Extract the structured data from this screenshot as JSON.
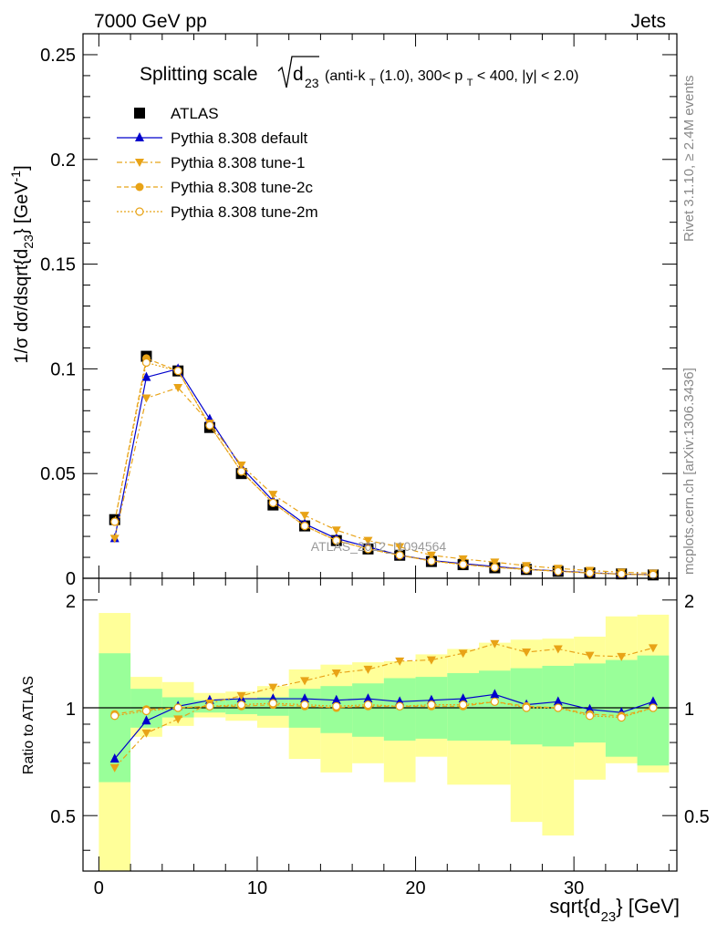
{
  "header": {
    "left": "7000 GeV pp",
    "right": "Jets"
  },
  "side_labels": {
    "rivet": "Rivet 3.1.10, ≥ 2.4M events",
    "mcplots": "mcplots.cern.ch [arXiv:1306.3436]"
  },
  "watermark": "ATLAS_2012_I1094564",
  "chart_data": [
    {
      "type": "line",
      "panel": "main",
      "title_parts": {
        "prefix": "Splitting scale",
        "sqrt_arg": "d",
        "sqrt_sub": "23",
        "cut_text": "(anti-k",
        "cut_sub1": "T",
        "cut_text2": "(1.0), 300< p",
        "cut_sub2": "T",
        "cut_text3": " < 400, |y| < 2.0)"
      },
      "ylabel_parts": {
        "a": "1/σ dσ/dsqrt{d",
        "sub": "23",
        "b": "} [GeV",
        "sup": "-1",
        "c": "]"
      },
      "xlim": [
        -1,
        36.5
      ],
      "ylim": [
        0,
        0.26
      ],
      "yticks": [
        "0",
        "0.05",
        "0.1",
        "0.15",
        "0.2",
        "0.25"
      ],
      "ytick_values": [
        0,
        0.05,
        0.1,
        0.15,
        0.2,
        0.25
      ],
      "x": [
        1,
        3,
        5,
        7,
        9,
        11,
        13,
        15,
        17,
        19,
        21,
        23,
        25,
        27,
        29,
        31,
        33,
        35
      ],
      "series": [
        {
          "name": "ATLAS",
          "marker": "square",
          "color": "#000000",
          "values": [
            0.028,
            0.106,
            0.099,
            0.072,
            0.05,
            0.035,
            0.025,
            0.018,
            0.014,
            0.011,
            0.008,
            0.0065,
            0.005,
            0.0042,
            0.0033,
            0.0026,
            0.0021,
            0.0016
          ]
        },
        {
          "name": "Pythia 8.308 default",
          "marker": "triangle-up",
          "color": "#0000cc",
          "values": [
            0.019,
            0.096,
            0.1,
            0.076,
            0.053,
            0.037,
            0.026,
            0.019,
            0.015,
            0.011,
            0.0085,
            0.007,
            0.0056,
            0.0043,
            0.0035,
            0.0026,
            0.002,
            0.0017
          ]
        },
        {
          "name": "Pythia 8.308 tune-1",
          "marker": "triangle-down",
          "color": "#e8a317",
          "values": [
            0.019,
            0.086,
            0.091,
            0.074,
            0.054,
            0.04,
            0.03,
            0.023,
            0.018,
            0.015,
            0.011,
            0.0092,
            0.0077,
            0.006,
            0.0047,
            0.0037,
            0.0029,
            0.0024
          ]
        },
        {
          "name": "Pythia 8.308 tune-2c",
          "marker": "circle",
          "color": "#e8a317",
          "values": [
            0.027,
            0.105,
            0.099,
            0.073,
            0.051,
            0.036,
            0.025,
            0.018,
            0.014,
            0.011,
            0.0083,
            0.0066,
            0.0052,
            0.0043,
            0.0034,
            0.0025,
            0.002,
            0.0016
          ]
        },
        {
          "name": "Pythia 8.308 tune-2m",
          "marker": "open-circle",
          "color": "#e8a317",
          "values": [
            0.027,
            0.103,
            0.099,
            0.073,
            0.051,
            0.036,
            0.025,
            0.018,
            0.014,
            0.011,
            0.0082,
            0.0066,
            0.0052,
            0.0042,
            0.0033,
            0.0025,
            0.002,
            0.0016
          ]
        }
      ]
    },
    {
      "type": "line",
      "panel": "ratio",
      "ylabel": "Ratio to ATLAS",
      "xlabel_parts": {
        "a": "sqrt{d",
        "sub": "23",
        "b": "} [GeV]"
      },
      "xlim": [
        -1,
        36.5
      ],
      "ylim": [
        0.35,
        2.3
      ],
      "xticks": [
        "0",
        "10",
        "20",
        "30"
      ],
      "xtick_values": [
        0,
        10,
        20,
        30
      ],
      "yticks": [
        "0.5",
        "1",
        "2"
      ],
      "ytick_values": [
        0.5,
        1,
        2
      ],
      "reference_line": 1,
      "bin_edges": [
        0,
        2,
        4,
        6,
        8,
        10,
        12,
        14,
        16,
        18,
        20,
        22,
        24,
        26,
        28,
        30,
        32,
        34,
        36
      ],
      "uncertainty_bands": {
        "total_color": "#ffff99",
        "stat_color": "#99ff99",
        "total_low": [
          0.0,
          0.83,
          0.89,
          0.94,
          0.92,
          0.88,
          0.72,
          0.66,
          0.7,
          0.62,
          0.73,
          0.61,
          0.61,
          0.48,
          0.44,
          0.63,
          0.7,
          0.66
        ],
        "total_high": [
          1.84,
          1.22,
          1.18,
          1.1,
          1.11,
          1.15,
          1.28,
          1.32,
          1.34,
          1.35,
          1.41,
          1.46,
          1.52,
          1.55,
          1.56,
          1.58,
          1.8,
          1.82
        ],
        "stat_low": [
          0.62,
          0.88,
          0.94,
          0.97,
          0.96,
          0.95,
          0.88,
          0.85,
          0.83,
          0.81,
          0.82,
          0.81,
          0.81,
          0.79,
          0.78,
          0.8,
          0.73,
          0.69
        ],
        "stat_high": [
          1.42,
          1.13,
          1.07,
          1.05,
          1.06,
          1.07,
          1.13,
          1.15,
          1.17,
          1.21,
          1.22,
          1.25,
          1.27,
          1.29,
          1.31,
          1.33,
          1.36,
          1.4
        ]
      },
      "series": [
        {
          "name": "Pythia 8.308 default",
          "values": [
            0.72,
            0.92,
            1.01,
            1.05,
            1.06,
            1.06,
            1.06,
            1.05,
            1.06,
            1.04,
            1.05,
            1.06,
            1.09,
            1.02,
            1.04,
            0.99,
            0.97,
            1.04
          ]
        },
        {
          "name": "Pythia 8.308 tune-1",
          "values": [
            0.68,
            0.85,
            0.93,
            1.03,
            1.08,
            1.14,
            1.19,
            1.25,
            1.28,
            1.35,
            1.36,
            1.42,
            1.51,
            1.43,
            1.46,
            1.4,
            1.39,
            1.47
          ]
        },
        {
          "name": "Pythia 8.308 tune-2c",
          "values": [
            0.96,
            0.99,
            1.0,
            1.01,
            1.01,
            1.02,
            1.01,
            1.0,
            1.01,
            1.01,
            1.01,
            1.01,
            1.04,
            1.01,
            1.0,
            0.96,
            0.95,
            1.0
          ]
        },
        {
          "name": "Pythia 8.308 tune-2m",
          "values": [
            0.95,
            0.98,
            1.0,
            1.01,
            1.02,
            1.03,
            1.02,
            1.01,
            1.02,
            1.01,
            1.02,
            1.02,
            1.04,
            1.0,
            1.0,
            0.95,
            0.94,
            1.0
          ]
        }
      ]
    }
  ]
}
